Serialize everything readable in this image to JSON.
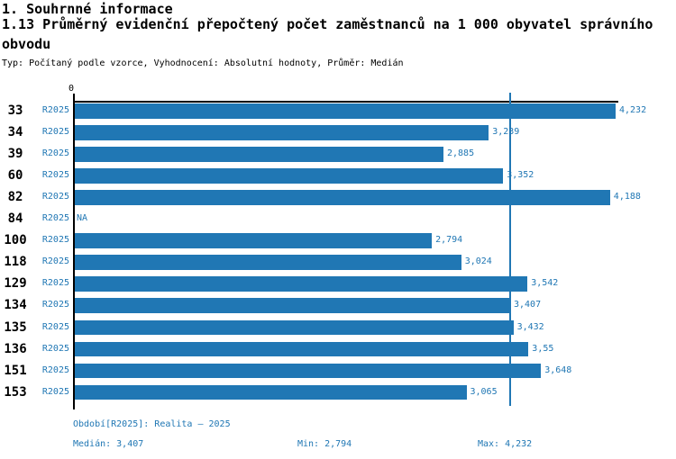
{
  "colors": {
    "accent": "#2077b4",
    "axis": "#000000"
  },
  "header": {
    "section_title": "1. Souhrnné informace",
    "indicator_title": "1.13 Průměrný evidenční přepočtený počet zaměstnanců na 1 000 obyvatel správního obvodu",
    "meta_line": "Typ: Počítaný podle vzorce, Vyhodnocení: Absolutní hodnoty, Průměr: Medián"
  },
  "chart_data": {
    "type": "bar",
    "orientation": "horizontal",
    "title": "1.13 Průměrný evidenční přepočtený počet zaměstnanců na 1 000 obyvatel správního obvodu",
    "origin_tick_label": "0",
    "series_label": "R2025",
    "categories": [
      "33",
      "34",
      "39",
      "60",
      "82",
      "84",
      "100",
      "118",
      "129",
      "134",
      "135",
      "136",
      "151",
      "153"
    ],
    "series": [
      {
        "name": "R2025",
        "values": [
          4.232,
          3.239,
          2.885,
          3.352,
          4.188,
          null,
          2.794,
          3.024,
          3.542,
          3.407,
          3.432,
          3.55,
          3.648,
          3.065
        ],
        "value_labels": [
          "4,232",
          "3,239",
          "2,885",
          "3,352",
          "4,188",
          "NA",
          "2,794",
          "3,024",
          "3,542",
          "3,407",
          "3,432",
          "3,55",
          "3,648",
          "3,065"
        ]
      }
    ],
    "na_label": "NA",
    "xlim": [
      0,
      4.232
    ],
    "median_value": 3.407,
    "grid": false,
    "legend": false,
    "bar_color": "#2077b4",
    "median_line_color": "#2077b4",
    "stats": {
      "median": 3.407,
      "min": 2.794,
      "max": 4.232
    }
  },
  "footer": {
    "period_label": "Období[R2025]: Realita – 2025",
    "median_label": "Medián: 3,407",
    "min_label": "Min: 2,794",
    "max_label": "Max: 4,232"
  }
}
